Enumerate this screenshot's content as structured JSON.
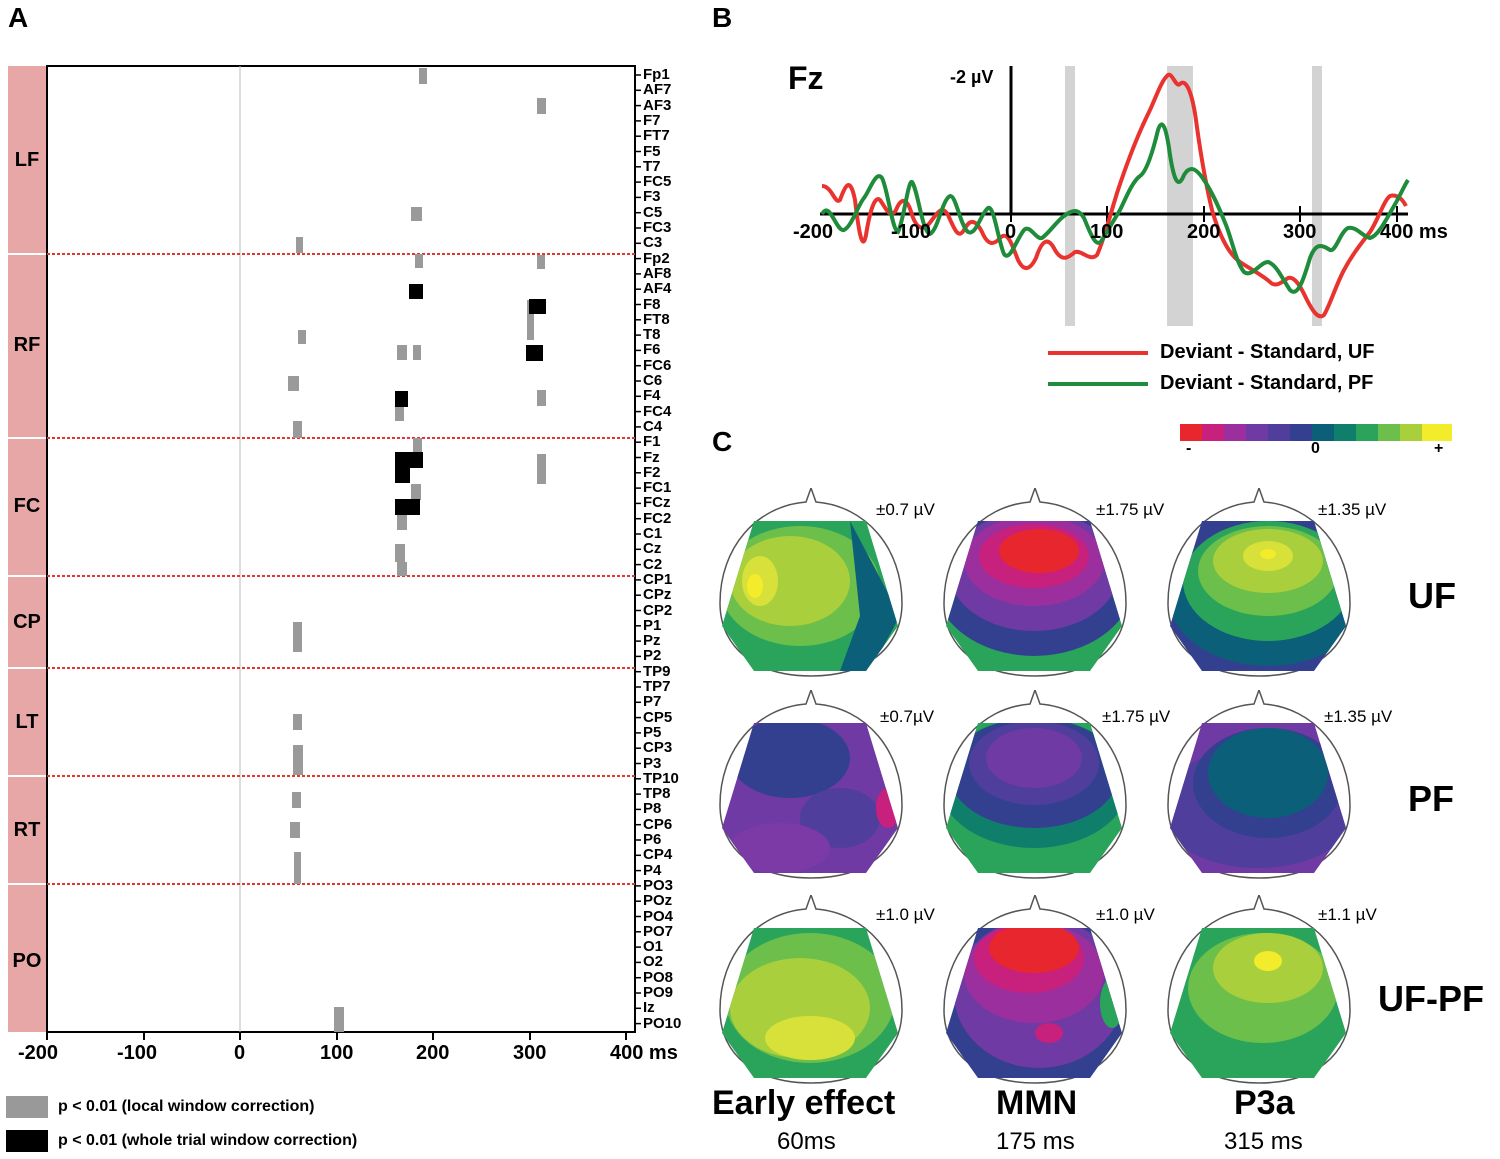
{
  "panels": {
    "a": "A",
    "b": "B",
    "c": "C"
  },
  "panel_a": {
    "groups": [
      "LF",
      "RF",
      "FC",
      "CP",
      "LT",
      "RT",
      "PO"
    ],
    "electrodes": [
      "Fp1",
      "AF7",
      "AF3",
      "F7",
      "FT7",
      "F5",
      "T7",
      "FC5",
      "F3",
      "C5",
      "FC3",
      "C3",
      "Fp2",
      "AF8",
      "AF4",
      "F8",
      "FT8",
      "T8",
      "F6",
      "FC6",
      "C6",
      "F4",
      "FC4",
      "C4",
      "F1",
      "Fz",
      "F2",
      "FC1",
      "FCz",
      "FC2",
      "C1",
      "Cz",
      "C2",
      "CP1",
      "CPz",
      "CP2",
      "P1",
      "Pz",
      "P2",
      "TP9",
      "TP7",
      "P7",
      "CP5",
      "P5",
      "CP3",
      "P3",
      "TP10",
      "TP8",
      "P8",
      "CP6",
      "P6",
      "CP4",
      "P4",
      "PO3",
      "POz",
      "PO4",
      "PO7",
      "O1",
      "O2",
      "PO8",
      "PO9",
      "Iz",
      "PO10"
    ],
    "x_ticks": [
      "-200",
      "-100",
      "0",
      "100",
      "200",
      "300",
      "400 ms"
    ],
    "legend": {
      "gray": "p < 0.01 (local window correction)",
      "black": "p < 0.01 (whole trial window correction)",
      "gray_color": "#999999",
      "black_color": "#000000"
    }
  },
  "panel_b": {
    "channel": "Fz",
    "y_label": "-2 µV",
    "x_ticks": [
      "-200",
      "-100",
      "0",
      "100",
      "200",
      "300",
      "400 ms"
    ],
    "legend": [
      "Deviant - Standard, UF",
      "Deviant - Standard, PF"
    ],
    "colors": {
      "uf": "#e8332e",
      "pf": "#1e8c3a",
      "shade": "#d3d3d3"
    }
  },
  "panel_c": {
    "colorbar": {
      "min": "-",
      "mid": "0",
      "max": "+"
    },
    "columns": [
      {
        "title": "Early effect",
        "time": "60ms"
      },
      {
        "title": "MMN",
        "time": "175 ms"
      },
      {
        "title": "P3a",
        "time": "315 ms"
      }
    ],
    "rows": [
      {
        "label": "UF",
        "scales": [
          "±0.7 µV",
          "±1.75 µV",
          "±1.35 µV"
        ]
      },
      {
        "label": "PF",
        "scales": [
          "±0.7µV",
          "±1.75 µV",
          "±1.35 µV"
        ]
      },
      {
        "label": "UF-PF",
        "scales": [
          "±1.0 µV",
          "±1.0 µV",
          "±1.1 µV"
        ]
      }
    ]
  }
}
